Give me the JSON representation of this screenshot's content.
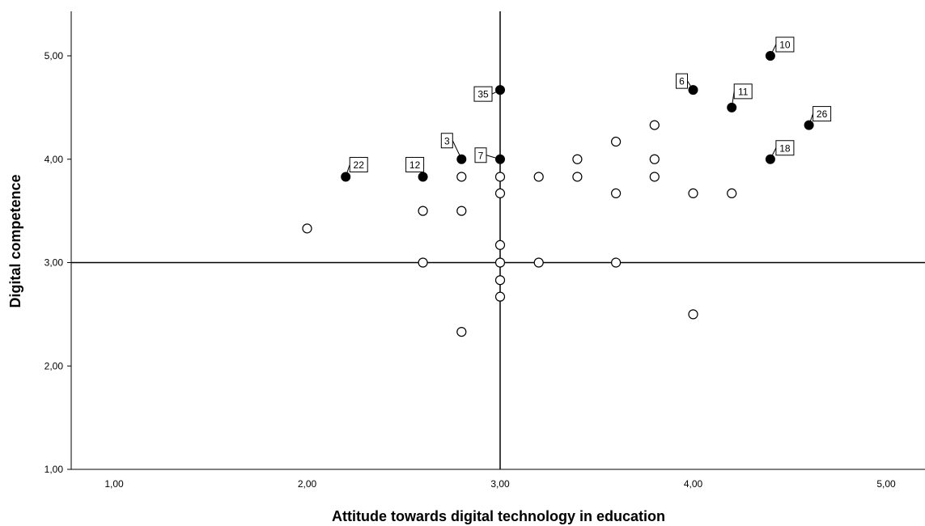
{
  "chart_data": {
    "type": "scatter",
    "title": "",
    "xlabel": "Attitude towards digital technology in education",
    "ylabel": "Digital competence",
    "xlim": [
      0.8,
      5.2
    ],
    "ylim": [
      1.0,
      5.45
    ],
    "x_ticks": [
      "1,00",
      "2,00",
      "3,00",
      "4,00",
      "5,00"
    ],
    "y_ticks": [
      "1,00",
      "2,00",
      "3,00",
      "4,00",
      "5,00"
    ],
    "reference_lines": {
      "x": 3.0,
      "y": 3.0
    },
    "grid": false,
    "series": [
      {
        "marker": "open-circle",
        "points": [
          {
            "x": 2.0,
            "y": 3.33
          },
          {
            "x": 2.6,
            "y": 3.5
          },
          {
            "x": 2.6,
            "y": 3.0
          },
          {
            "x": 2.8,
            "y": 3.83
          },
          {
            "x": 2.8,
            "y": 3.5
          },
          {
            "x": 2.8,
            "y": 2.33
          },
          {
            "x": 3.0,
            "y": 3.83
          },
          {
            "x": 3.0,
            "y": 3.67
          },
          {
            "x": 3.0,
            "y": 3.17
          },
          {
            "x": 3.0,
            "y": 3.0
          },
          {
            "x": 3.0,
            "y": 2.83
          },
          {
            "x": 3.0,
            "y": 2.67
          },
          {
            "x": 3.2,
            "y": 3.83
          },
          {
            "x": 3.2,
            "y": 3.0
          },
          {
            "x": 3.4,
            "y": 4.0
          },
          {
            "x": 3.4,
            "y": 3.83
          },
          {
            "x": 3.6,
            "y": 4.17
          },
          {
            "x": 3.6,
            "y": 3.67
          },
          {
            "x": 3.6,
            "y": 3.0
          },
          {
            "x": 3.8,
            "y": 4.33
          },
          {
            "x": 3.8,
            "y": 4.0
          },
          {
            "x": 3.8,
            "y": 3.83
          },
          {
            "x": 4.0,
            "y": 3.67
          },
          {
            "x": 4.0,
            "y": 2.5
          },
          {
            "x": 4.2,
            "y": 3.67
          }
        ]
      },
      {
        "marker": "filled-circle",
        "points": [
          {
            "x": 2.2,
            "y": 3.83,
            "label": "22"
          },
          {
            "x": 2.6,
            "y": 3.83,
            "label": "12"
          },
          {
            "x": 2.8,
            "y": 4.0,
            "label": "3"
          },
          {
            "x": 3.0,
            "y": 4.0,
            "label": "7"
          },
          {
            "x": 3.0,
            "y": 4.67,
            "label": "35"
          },
          {
            "x": 4.0,
            "y": 4.67,
            "label": "6"
          },
          {
            "x": 4.2,
            "y": 4.5,
            "label": "11"
          },
          {
            "x": 4.4,
            "y": 5.0,
            "label": "10"
          },
          {
            "x": 4.4,
            "y": 4.0,
            "label": "18"
          },
          {
            "x": 4.6,
            "y": 4.33,
            "label": "26"
          }
        ]
      }
    ]
  }
}
